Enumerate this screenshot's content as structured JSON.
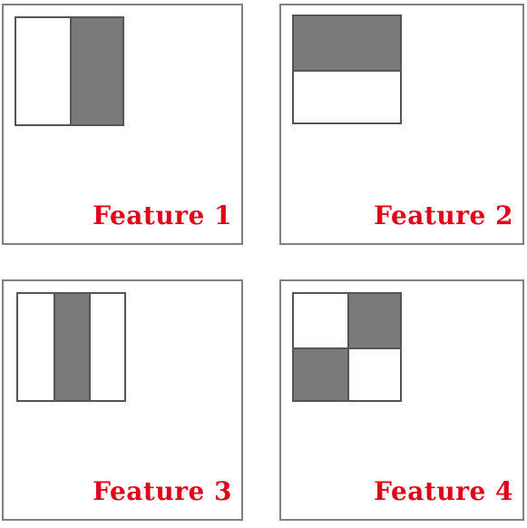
{
  "panels": [
    {
      "label": "Feature 1"
    },
    {
      "label": "Feature 2"
    },
    {
      "label": "Feature 3"
    },
    {
      "label": "Feature 4"
    }
  ],
  "colors": {
    "dark_region": "#7a7a7a",
    "light_region": "#ffffff",
    "label_text": "#e0001a",
    "panel_border": "#808080"
  }
}
